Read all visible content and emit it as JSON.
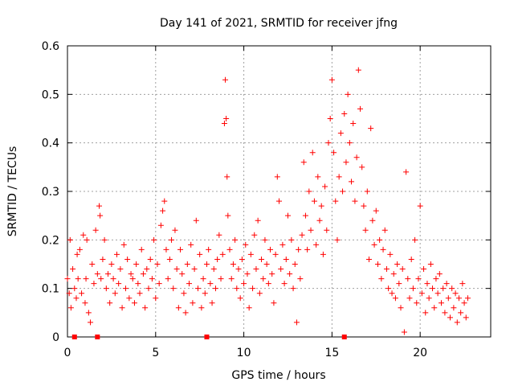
{
  "chart_data": {
    "type": "scatter",
    "title": "Day 141 of 2021, SRMTID for receiver jfng",
    "xlabel": "GPS time / hours",
    "ylabel": "SRMTID / TECUs",
    "xlim": [
      0,
      24
    ],
    "ylim": [
      0,
      0.6
    ],
    "xticks": [
      0,
      5,
      10,
      15,
      20
    ],
    "xtick_labels": [
      "0",
      "5",
      "10",
      "15",
      "20"
    ],
    "yticks": [
      0,
      0.1,
      0.2,
      0.3,
      0.4,
      0.5,
      0.6
    ],
    "ytick_labels": [
      "0",
      "0.1",
      "0.2",
      "0.3",
      "0.4",
      "0.5",
      "0.6"
    ],
    "grid": true,
    "marker": "plus",
    "color": "#ff0000",
    "baseline_markers_x": [
      0.4,
      1.7,
      7.9,
      15.7
    ],
    "points": [
      [
        0.0,
        0.12
      ],
      [
        0.1,
        0.09
      ],
      [
        0.15,
        0.2
      ],
      [
        0.2,
        0.06
      ],
      [
        0.3,
        0.14
      ],
      [
        0.4,
        0.1
      ],
      [
        0.5,
        0.08
      ],
      [
        0.55,
        0.17
      ],
      [
        0.6,
        0.12
      ],
      [
        0.7,
        0.18
      ],
      [
        0.8,
        0.09
      ],
      [
        0.9,
        0.21
      ],
      [
        1.0,
        0.07
      ],
      [
        1.05,
        0.12
      ],
      [
        1.1,
        0.2
      ],
      [
        1.2,
        0.05
      ],
      [
        1.3,
        0.03
      ],
      [
        1.4,
        0.15
      ],
      [
        1.5,
        0.11
      ],
      [
        1.6,
        0.22
      ],
      [
        1.7,
        0.13
      ],
      [
        1.8,
        0.27
      ],
      [
        1.85,
        0.25
      ],
      [
        1.9,
        0.12
      ],
      [
        2.0,
        0.16
      ],
      [
        2.1,
        0.2
      ],
      [
        2.2,
        0.1
      ],
      [
        2.3,
        0.13
      ],
      [
        2.4,
        0.07
      ],
      [
        2.5,
        0.15
      ],
      [
        2.6,
        0.12
      ],
      [
        2.7,
        0.09
      ],
      [
        2.8,
        0.17
      ],
      [
        2.9,
        0.11
      ],
      [
        3.0,
        0.14
      ],
      [
        3.1,
        0.06
      ],
      [
        3.2,
        0.19
      ],
      [
        3.3,
        0.1
      ],
      [
        3.4,
        0.16
      ],
      [
        3.5,
        0.08
      ],
      [
        3.6,
        0.13
      ],
      [
        3.7,
        0.12
      ],
      [
        3.8,
        0.07
      ],
      [
        3.9,
        0.15
      ],
      [
        4.0,
        0.11
      ],
      [
        4.1,
        0.09
      ],
      [
        4.2,
        0.18
      ],
      [
        4.3,
        0.13
      ],
      [
        4.4,
        0.06
      ],
      [
        4.5,
        0.14
      ],
      [
        4.6,
        0.1
      ],
      [
        4.7,
        0.16
      ],
      [
        4.8,
        0.12
      ],
      [
        4.9,
        0.2
      ],
      [
        5.0,
        0.08
      ],
      [
        5.1,
        0.15
      ],
      [
        5.2,
        0.11
      ],
      [
        5.3,
        0.23
      ],
      [
        5.4,
        0.26
      ],
      [
        5.5,
        0.28
      ],
      [
        5.6,
        0.18
      ],
      [
        5.7,
        0.12
      ],
      [
        5.8,
        0.16
      ],
      [
        5.9,
        0.2
      ],
      [
        6.0,
        0.1
      ],
      [
        6.1,
        0.22
      ],
      [
        6.2,
        0.14
      ],
      [
        6.3,
        0.06
      ],
      [
        6.4,
        0.18
      ],
      [
        6.5,
        0.13
      ],
      [
        6.6,
        0.09
      ],
      [
        6.7,
        0.05
      ],
      [
        6.8,
        0.15
      ],
      [
        6.9,
        0.11
      ],
      [
        7.0,
        0.19
      ],
      [
        7.1,
        0.07
      ],
      [
        7.2,
        0.14
      ],
      [
        7.3,
        0.24
      ],
      [
        7.4,
        0.1
      ],
      [
        7.5,
        0.17
      ],
      [
        7.6,
        0.06
      ],
      [
        7.7,
        0.12
      ],
      [
        7.8,
        0.09
      ],
      [
        7.9,
        0.15
      ],
      [
        8.0,
        0.18
      ],
      [
        8.1,
        0.11
      ],
      [
        8.2,
        0.07
      ],
      [
        8.3,
        0.14
      ],
      [
        8.4,
        0.1
      ],
      [
        8.5,
        0.16
      ],
      [
        8.6,
        0.21
      ],
      [
        8.7,
        0.12
      ],
      [
        8.8,
        0.17
      ],
      [
        8.9,
        0.44
      ],
      [
        8.95,
        0.53
      ],
      [
        9.0,
        0.45
      ],
      [
        9.05,
        0.33
      ],
      [
        9.1,
        0.25
      ],
      [
        9.2,
        0.18
      ],
      [
        9.3,
        0.12
      ],
      [
        9.4,
        0.15
      ],
      [
        9.5,
        0.2
      ],
      [
        9.6,
        0.1
      ],
      [
        9.7,
        0.14
      ],
      [
        9.8,
        0.08
      ],
      [
        9.9,
        0.16
      ],
      [
        10.0,
        0.11
      ],
      [
        10.1,
        0.19
      ],
      [
        10.2,
        0.13
      ],
      [
        10.3,
        0.06
      ],
      [
        10.4,
        0.17
      ],
      [
        10.5,
        0.1
      ],
      [
        10.6,
        0.21
      ],
      [
        10.7,
        0.14
      ],
      [
        10.8,
        0.24
      ],
      [
        10.9,
        0.09
      ],
      [
        11.0,
        0.16
      ],
      [
        11.1,
        0.12
      ],
      [
        11.2,
        0.2
      ],
      [
        11.3,
        0.15
      ],
      [
        11.4,
        0.11
      ],
      [
        11.5,
        0.18
      ],
      [
        11.6,
        0.13
      ],
      [
        11.7,
        0.07
      ],
      [
        11.8,
        0.17
      ],
      [
        11.9,
        0.33
      ],
      [
        12.0,
        0.28
      ],
      [
        12.1,
        0.14
      ],
      [
        12.2,
        0.19
      ],
      [
        12.3,
        0.11
      ],
      [
        12.4,
        0.16
      ],
      [
        12.5,
        0.25
      ],
      [
        12.6,
        0.13
      ],
      [
        12.7,
        0.2
      ],
      [
        12.8,
        0.1
      ],
      [
        12.9,
        0.15
      ],
      [
        13.0,
        0.03
      ],
      [
        13.1,
        0.18
      ],
      [
        13.2,
        0.12
      ],
      [
        13.3,
        0.21
      ],
      [
        13.4,
        0.36
      ],
      [
        13.5,
        0.25
      ],
      [
        13.6,
        0.18
      ],
      [
        13.7,
        0.3
      ],
      [
        13.8,
        0.22
      ],
      [
        13.9,
        0.38
      ],
      [
        14.0,
        0.28
      ],
      [
        14.1,
        0.19
      ],
      [
        14.2,
        0.33
      ],
      [
        14.3,
        0.24
      ],
      [
        14.4,
        0.27
      ],
      [
        14.5,
        0.17
      ],
      [
        14.6,
        0.31
      ],
      [
        14.7,
        0.22
      ],
      [
        14.8,
        0.4
      ],
      [
        14.9,
        0.45
      ],
      [
        15.0,
        0.53
      ],
      [
        15.1,
        0.38
      ],
      [
        15.2,
        0.28
      ],
      [
        15.3,
        0.2
      ],
      [
        15.4,
        0.33
      ],
      [
        15.5,
        0.42
      ],
      [
        15.6,
        0.3
      ],
      [
        15.7,
        0.46
      ],
      [
        15.8,
        0.36
      ],
      [
        15.9,
        0.5
      ],
      [
        16.0,
        0.4
      ],
      [
        16.1,
        0.32
      ],
      [
        16.2,
        0.44
      ],
      [
        16.3,
        0.28
      ],
      [
        16.4,
        0.37
      ],
      [
        16.5,
        0.55
      ],
      [
        16.6,
        0.47
      ],
      [
        16.7,
        0.35
      ],
      [
        16.8,
        0.27
      ],
      [
        16.9,
        0.22
      ],
      [
        17.0,
        0.3
      ],
      [
        17.1,
        0.16
      ],
      [
        17.2,
        0.43
      ],
      [
        17.3,
        0.24
      ],
      [
        17.4,
        0.19
      ],
      [
        17.5,
        0.26
      ],
      [
        17.6,
        0.15
      ],
      [
        17.7,
        0.2
      ],
      [
        17.8,
        0.12
      ],
      [
        17.9,
        0.18
      ],
      [
        18.0,
        0.22
      ],
      [
        18.1,
        0.14
      ],
      [
        18.2,
        0.1
      ],
      [
        18.3,
        0.17
      ],
      [
        18.4,
        0.09
      ],
      [
        18.5,
        0.13
      ],
      [
        18.6,
        0.08
      ],
      [
        18.7,
        0.15
      ],
      [
        18.8,
        0.11
      ],
      [
        18.9,
        0.06
      ],
      [
        19.0,
        0.14
      ],
      [
        19.1,
        0.01
      ],
      [
        19.2,
        0.34
      ],
      [
        19.3,
        0.12
      ],
      [
        19.4,
        0.08
      ],
      [
        19.5,
        0.16
      ],
      [
        19.6,
        0.1
      ],
      [
        19.7,
        0.2
      ],
      [
        19.8,
        0.07
      ],
      [
        19.9,
        0.12
      ],
      [
        20.0,
        0.27
      ],
      [
        20.1,
        0.09
      ],
      [
        20.2,
        0.14
      ],
      [
        20.3,
        0.05
      ],
      [
        20.4,
        0.11
      ],
      [
        20.5,
        0.08
      ],
      [
        20.6,
        0.15
      ],
      [
        20.7,
        0.1
      ],
      [
        20.8,
        0.06
      ],
      [
        20.9,
        0.12
      ],
      [
        21.0,
        0.09
      ],
      [
        21.1,
        0.13
      ],
      [
        21.2,
        0.07
      ],
      [
        21.3,
        0.1
      ],
      [
        21.4,
        0.05
      ],
      [
        21.5,
        0.11
      ],
      [
        21.6,
        0.08
      ],
      [
        21.7,
        0.04
      ],
      [
        21.8,
        0.1
      ],
      [
        21.9,
        0.06
      ],
      [
        22.0,
        0.09
      ],
      [
        22.1,
        0.03
      ],
      [
        22.2,
        0.08
      ],
      [
        22.3,
        0.05
      ],
      [
        22.4,
        0.11
      ],
      [
        22.5,
        0.07
      ],
      [
        22.6,
        0.04
      ],
      [
        22.7,
        0.08
      ]
    ]
  }
}
